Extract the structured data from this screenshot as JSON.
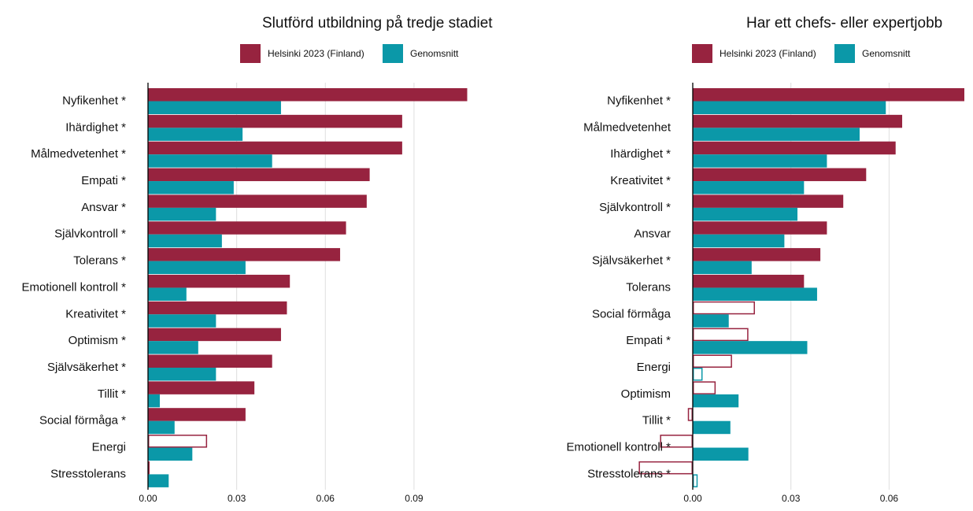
{
  "colors": {
    "primary": "#97233f",
    "secondary": "#0b98a8",
    "grid": "#dedede",
    "axis": "#000000"
  },
  "chart_data": [
    {
      "type": "bar",
      "orientation": "horizontal",
      "title": "Slutförd utbildning på tredje stadiet",
      "legend_position": "top-right",
      "grid": true,
      "xlim": [
        0,
        0.11
      ],
      "x_ticks": [
        0.0,
        0.03,
        0.06,
        0.09
      ],
      "x_tick_labels": [
        "0.00",
        "0.03",
        "0.06",
        "0.09"
      ],
      "categories": [
        "Nyfikenhet *",
        "Ihärdighet *",
        "Målmedvetenhet *",
        "Empati *",
        "Ansvar *",
        "Självkontroll *",
        "Tolerans *",
        "Emotionell kontroll *",
        "Kreativitet *",
        "Optimism *",
        "Självsäkerhet *",
        "Tillit *",
        "Social förmåga *",
        "Energi",
        "Stresstolerans"
      ],
      "series": [
        {
          "name": "Helsinki 2023 (Finland)",
          "color": "#97233f",
          "values": [
            0.108,
            0.086,
            0.086,
            0.075,
            0.074,
            0.067,
            0.065,
            0.048,
            0.047,
            0.045,
            0.042,
            0.036,
            0.033,
            0.02,
            0.0005
          ],
          "filled": [
            true,
            true,
            true,
            true,
            true,
            true,
            true,
            true,
            true,
            true,
            true,
            true,
            true,
            false,
            false
          ]
        },
        {
          "name": "Genomsnitt",
          "color": "#0b98a8",
          "values": [
            0.045,
            0.032,
            0.042,
            0.029,
            0.023,
            0.025,
            0.033,
            0.013,
            0.023,
            0.017,
            0.023,
            0.004,
            0.009,
            0.015,
            0.007
          ],
          "filled": [
            true,
            true,
            true,
            true,
            true,
            true,
            true,
            true,
            true,
            true,
            true,
            true,
            true,
            true,
            true
          ]
        }
      ]
    },
    {
      "type": "bar",
      "orientation": "horizontal",
      "title": "Har ett chefs- eller expertjobb",
      "legend_position": "top-right",
      "grid": true,
      "xlim": [
        -0.017,
        0.083
      ],
      "x_ticks": [
        0.0,
        0.03,
        0.06
      ],
      "x_tick_labels": [
        "0.00",
        "0.03",
        "0.06"
      ],
      "categories": [
        "Nyfikenhet *",
        "Målmedvetenhet",
        "Ihärdighet *",
        "Kreativitet *",
        "Självkontroll *",
        "Ansvar",
        "Självsäkerhet *",
        "Tolerans",
        "Social förmåga",
        "Empati *",
        "Energi",
        "Optimism",
        "Tillit *",
        "Emotionell kontroll *",
        "Stresstolerans *"
      ],
      "series": [
        {
          "name": "Helsinki 2023 (Finland)",
          "color": "#97233f",
          "values": [
            0.083,
            0.064,
            0.062,
            0.053,
            0.046,
            0.041,
            0.039,
            0.034,
            0.019,
            0.017,
            0.012,
            0.007,
            -0.0015,
            -0.01,
            -0.0165
          ],
          "filled": [
            true,
            true,
            true,
            true,
            true,
            true,
            true,
            true,
            false,
            false,
            false,
            false,
            false,
            false,
            false
          ]
        },
        {
          "name": "Genomsnitt",
          "color": "#0b98a8",
          "values": [
            0.059,
            0.051,
            0.041,
            0.034,
            0.032,
            0.028,
            0.018,
            0.038,
            0.011,
            0.035,
            0.003,
            0.014,
            0.0115,
            0.017,
            0.0015
          ],
          "filled": [
            true,
            true,
            true,
            true,
            true,
            true,
            true,
            true,
            true,
            true,
            false,
            true,
            true,
            true,
            false
          ]
        }
      ]
    }
  ]
}
